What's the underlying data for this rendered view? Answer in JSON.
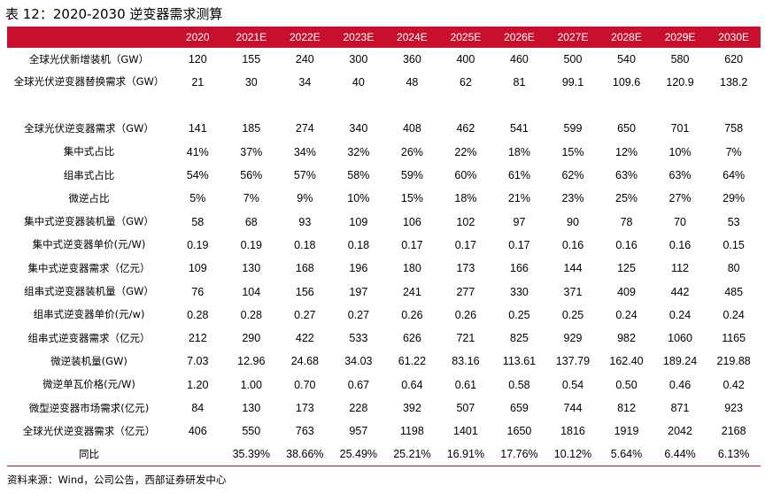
{
  "title": "表 12：2020-2030 逆变器需求测算",
  "source": "资料来源：Wind，公司公告，西部证券研发中心",
  "colors": {
    "header_bg": "#c8102e",
    "header_text": "#ffffff",
    "rule": "#c8102e"
  },
  "table": {
    "headers": [
      "",
      "2020",
      "2021E",
      "2022E",
      "2023E",
      "2024E",
      "2025E",
      "2026E",
      "2027E",
      "2028E",
      "2029E",
      "2030E"
    ],
    "rows": [
      {
        "label": "全球光伏新增装机（GW）",
        "values": [
          "120",
          "155",
          "240",
          "300",
          "360",
          "400",
          "460",
          "500",
          "540",
          "580",
          "620"
        ]
      },
      {
        "label": "全球光伏逆变器替换需求（GW）",
        "values": [
          "21",
          "30",
          "34",
          "40",
          "48",
          "62",
          "81",
          "99.1",
          "109.6",
          "120.9",
          "138.2"
        ],
        "tall": true
      },
      {
        "label": "全球光伏逆变器需求（GW）",
        "values": [
          "141",
          "185",
          "274",
          "340",
          "408",
          "462",
          "541",
          "599",
          "650",
          "701",
          "758"
        ]
      },
      {
        "label": "集中式占比",
        "values": [
          "41%",
          "37%",
          "34%",
          "32%",
          "26%",
          "22%",
          "18%",
          "15%",
          "12%",
          "10%",
          "7%"
        ]
      },
      {
        "label": "组串式占比",
        "values": [
          "54%",
          "56%",
          "57%",
          "58%",
          "59%",
          "60%",
          "61%",
          "62%",
          "63%",
          "63%",
          "64%"
        ]
      },
      {
        "label": "微逆占比",
        "values": [
          "5%",
          "7%",
          "9%",
          "10%",
          "15%",
          "18%",
          "21%",
          "23%",
          "25%",
          "27%",
          "29%"
        ]
      },
      {
        "label": "集中式逆变器装机量（GW）",
        "values": [
          "58",
          "68",
          "93",
          "109",
          "106",
          "102",
          "97",
          "90",
          "78",
          "70",
          "53"
        ]
      },
      {
        "label": "集中式逆变器单价(元/W)",
        "values": [
          "0.19",
          "0.19",
          "0.18",
          "0.18",
          "0.17",
          "0.17",
          "0.17",
          "0.16",
          "0.16",
          "0.16",
          "0.15"
        ]
      },
      {
        "label": "集中式逆变器需求（亿元）",
        "values": [
          "109",
          "130",
          "168",
          "196",
          "180",
          "173",
          "166",
          "144",
          "125",
          "112",
          "80"
        ]
      },
      {
        "label": "组串式逆变器装机量（GW）",
        "values": [
          "76",
          "104",
          "156",
          "197",
          "241",
          "277",
          "330",
          "371",
          "409",
          "442",
          "485"
        ]
      },
      {
        "label": "组串式逆变器单价(元/w)",
        "values": [
          "0.28",
          "0.28",
          "0.27",
          "0.27",
          "0.26",
          "0.26",
          "0.25",
          "0.25",
          "0.24",
          "0.24",
          "0.24"
        ]
      },
      {
        "label": "组串式逆变器需求（亿元）",
        "values": [
          "212",
          "290",
          "422",
          "533",
          "626",
          "721",
          "825",
          "929",
          "982",
          "1060",
          "1165"
        ]
      },
      {
        "label": "微逆装机量(GW)",
        "values": [
          "7.03",
          "12.96",
          "24.68",
          "34.03",
          "61.22",
          "83.16",
          "113.61",
          "137.79",
          "162.40",
          "189.24",
          "219.88"
        ]
      },
      {
        "label": "微逆单瓦价格(元/W)",
        "values": [
          "1.20",
          "1.00",
          "0.70",
          "0.67",
          "0.64",
          "0.61",
          "0.58",
          "0.54",
          "0.50",
          "0.46",
          "0.42"
        ]
      },
      {
        "label": "微型逆变器市场需求(亿元)",
        "values": [
          "84",
          "130",
          "173",
          "228",
          "392",
          "507",
          "659",
          "744",
          "812",
          "871",
          "923"
        ]
      },
      {
        "label": "全球光伏逆变器需求（亿元）",
        "values": [
          "406",
          "550",
          "763",
          "957",
          "1198",
          "1401",
          "1650",
          "1816",
          "1919",
          "2042",
          "2168"
        ]
      },
      {
        "label": "同比",
        "values": [
          "",
          "35.39%",
          "38.66%",
          "25.49%",
          "25.21%",
          "16.91%",
          "17.76%",
          "10.12%",
          "5.64%",
          "6.44%",
          "6.13%"
        ]
      }
    ]
  }
}
